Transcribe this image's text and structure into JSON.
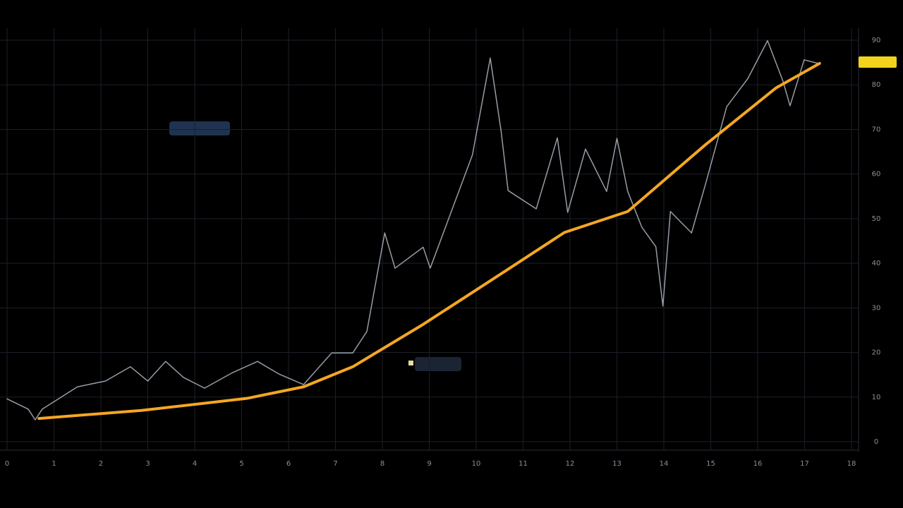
{
  "chart_data": {
    "type": "line",
    "xlim": [
      0,
      18
    ],
    "xticks": [
      0,
      1,
      2,
      3,
      4,
      5,
      6,
      7,
      8,
      9,
      10,
      11,
      12,
      13,
      14,
      15,
      16,
      17,
      18
    ],
    "ylim": [
      0,
      90
    ],
    "yticks": [
      0,
      10,
      20,
      30,
      40,
      50,
      60,
      70,
      80,
      90
    ],
    "grid": true,
    "series": [
      {
        "color": "#c8d0dc",
        "x": [
          0,
          0.45,
          0.6,
          0.75,
          1.5,
          2.1,
          2.63,
          3.0,
          3.38,
          3.76,
          4.21,
          4.81,
          5.34,
          5.79,
          6.32,
          6.92,
          7.37,
          7.67,
          8.05,
          8.27,
          8.87,
          9.02,
          9.47,
          9.92,
          10.3,
          10.53,
          10.68,
          11.28,
          11.73,
          11.95,
          12.33,
          12.78,
          13.0,
          13.23,
          13.53,
          13.83,
          13.98,
          14.14,
          14.59,
          14.89,
          15.34,
          15.79,
          16.21,
          16.54,
          16.69,
          16.99,
          17.29
        ],
        "values": [
          9.6,
          7.3,
          4.9,
          7.3,
          12.3,
          13.6,
          16.8,
          13.6,
          18.0,
          14.4,
          12.0,
          15.5,
          18.0,
          15.2,
          12.8,
          19.9,
          19.9,
          24.7,
          46.8,
          38.9,
          43.6,
          38.9,
          51.6,
          64.3,
          86.0,
          69.7,
          56.3,
          52.2,
          68.1,
          51.4,
          65.6,
          56.1,
          68.0,
          56.1,
          48.1,
          43.7,
          30.4,
          51.6,
          46.8,
          57.8,
          75.1,
          81.4,
          89.9,
          80.8,
          75.3,
          85.6,
          84.8
        ]
      },
      {
        "color": "#f5a623",
        "x": [
          0.68,
          2.86,
          5.11,
          6.32,
          7.37,
          8.87,
          10.38,
          11.88,
          13.23,
          14.89,
          16.39,
          17.32
        ],
        "values": [
          5.2,
          7.0,
          9.7,
          12.3,
          16.8,
          26.3,
          36.6,
          46.9,
          51.6,
          66.6,
          79.3,
          84.8
        ]
      }
    ]
  }
}
